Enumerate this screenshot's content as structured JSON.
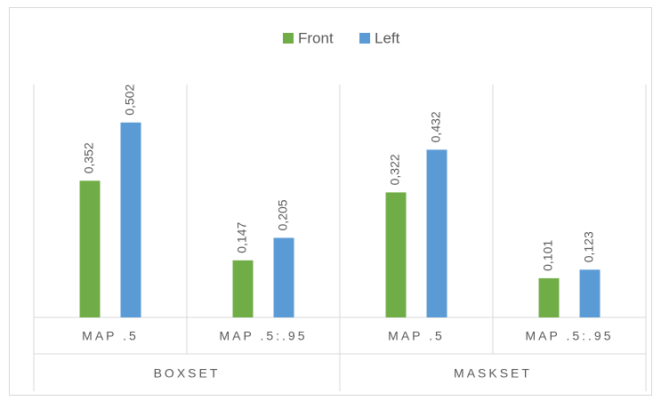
{
  "chart_data": {
    "type": "bar",
    "categories": [
      "MAP .5",
      "MAP .5:.95",
      "MAP .5",
      "MAP .5:.95"
    ],
    "category_groups": [
      "BOXSET",
      "MASKSET"
    ],
    "series": [
      {
        "name": "Front",
        "color": "#70ad47",
        "values": [
          0.352,
          0.147,
          0.322,
          0.101
        ],
        "value_labels": [
          "0,352",
          "0,147",
          "0,322",
          "0,101"
        ]
      },
      {
        "name": "Left",
        "color": "#5b9bd5",
        "values": [
          0.502,
          0.205,
          0.432,
          0.123
        ],
        "value_labels": [
          "0,502",
          "0,205",
          "0,432",
          "0,123"
        ]
      }
    ],
    "ylim": [
      0,
      0.6
    ],
    "legend": "top"
  }
}
